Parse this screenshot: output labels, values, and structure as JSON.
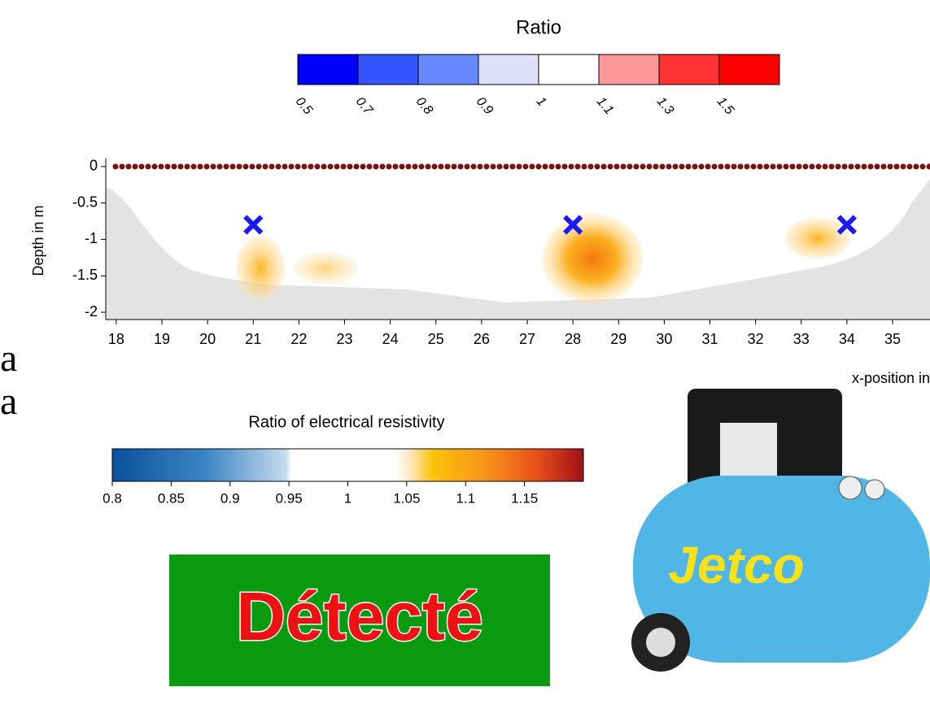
{
  "left_fragments": [
    "a",
    "a"
  ],
  "ratio_legend": {
    "title": "Ratio",
    "ticks": [
      0.5,
      0.7,
      0.8,
      0.9,
      1,
      1.1,
      1.3,
      1.5
    ],
    "colors": [
      "#0000ff",
      "#3355ff",
      "#6688ff",
      "#dde0f8",
      "#ffffff",
      "#ff9999",
      "#ff3333",
      "#ff0000"
    ]
  },
  "section": {
    "ylabel": "Depth in m",
    "xlabel": "x-position in",
    "xlim": [
      17.77,
      35.82
    ],
    "ylim": [
      -2.1,
      0.11
    ],
    "xticks": [
      18,
      19,
      20,
      21,
      22,
      23,
      24,
      25,
      26,
      27,
      28,
      29,
      30,
      31,
      32,
      33,
      34,
      35
    ],
    "yticks": [
      0,
      -0.5,
      -1,
      -1.5,
      -2
    ],
    "markers": {
      "x": [
        21,
        28,
        34
      ],
      "depth": [
        -0.8,
        -0.8,
        -0.8
      ],
      "color": "#1a1aff"
    }
  },
  "resistivity_colorbar": {
    "title": "Ratio of electrical resistivity",
    "lim": [
      0.8,
      1.2
    ],
    "ticks": [
      0.8,
      0.85,
      0.9,
      0.95,
      1,
      1.05,
      1.1,
      1.15
    ]
  },
  "badge": "Détecté",
  "photo_label": "Jetco"
}
